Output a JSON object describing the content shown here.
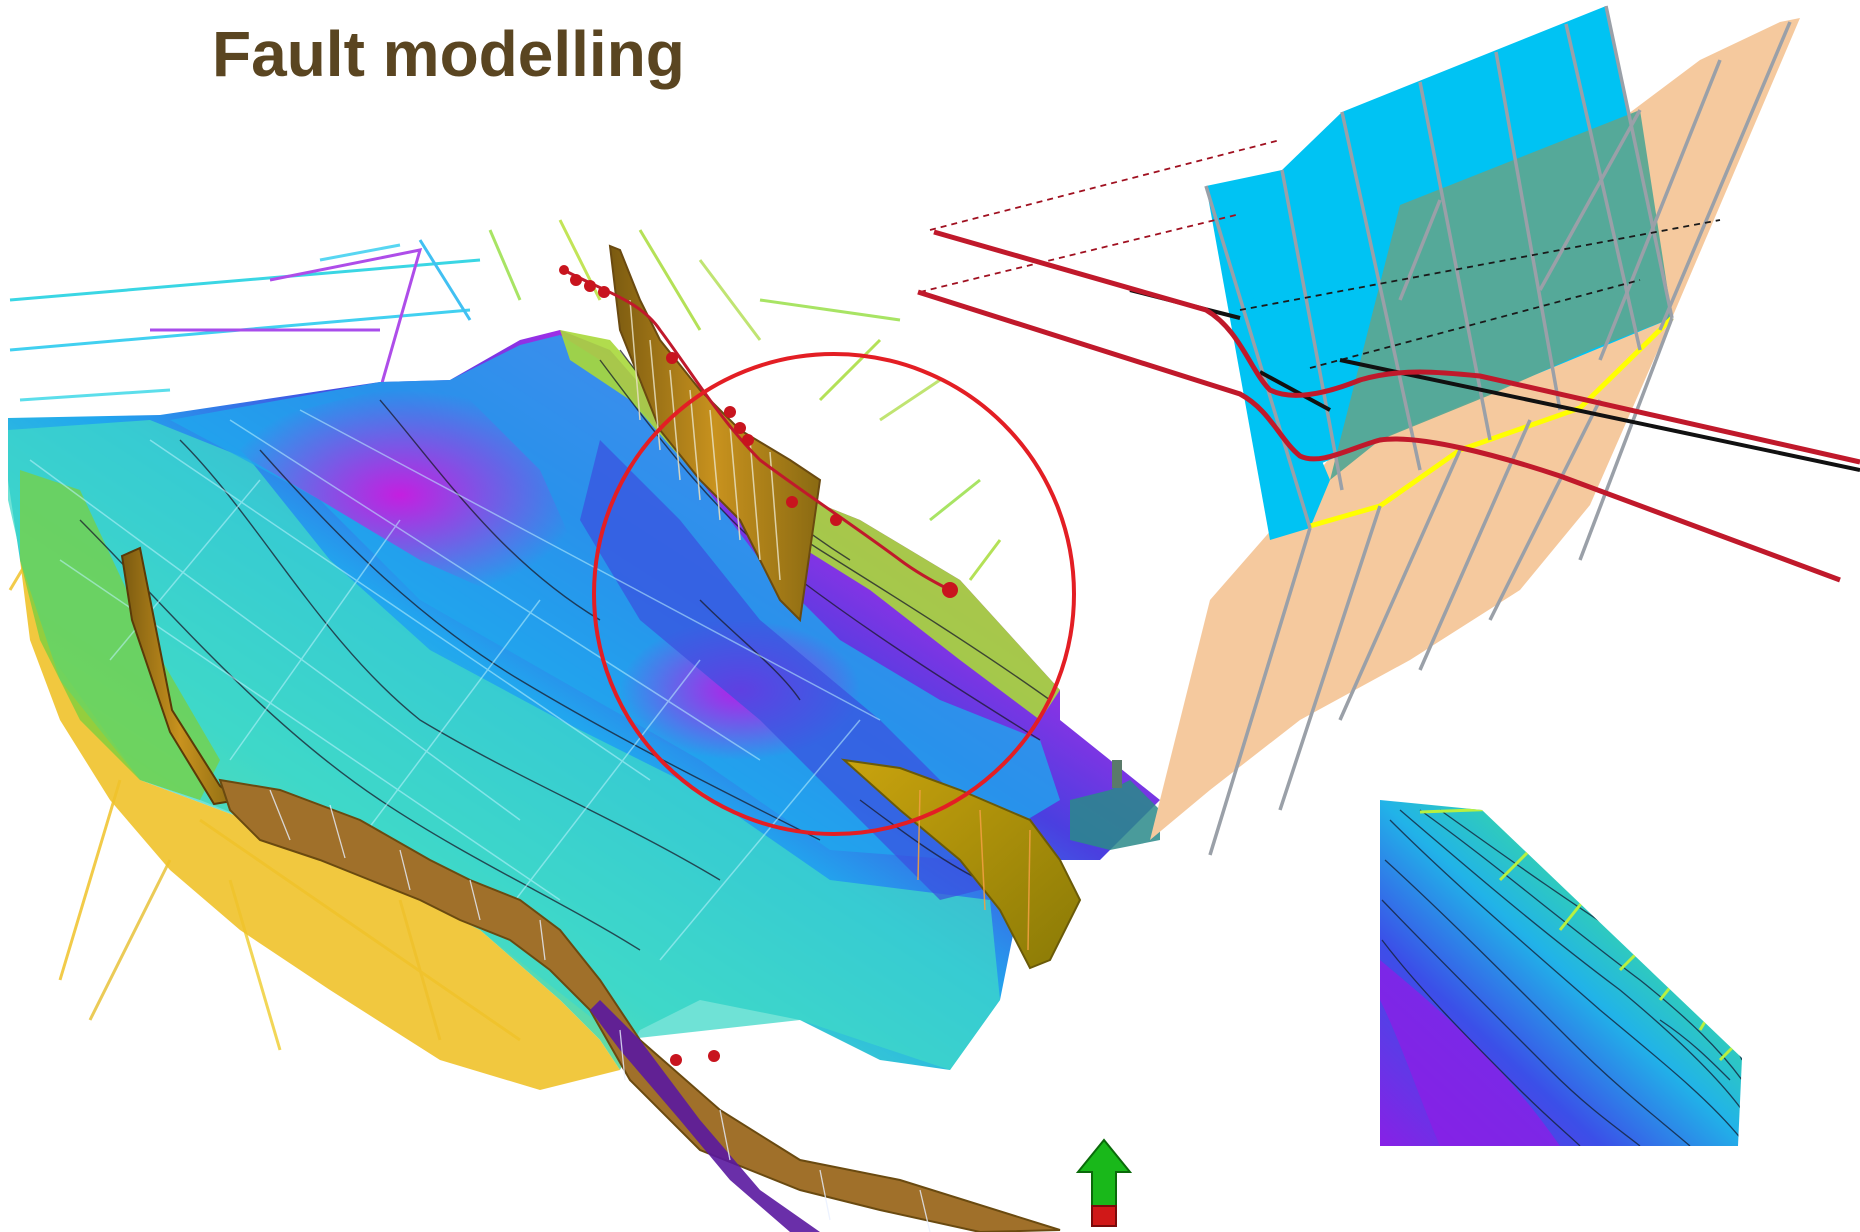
{
  "slide": {
    "title": "Fault modelling"
  },
  "colors": {
    "title": "#5a4521",
    "highlight_circle": "#e31e24",
    "fault_plane_blue": "#00c3f3",
    "fault_plane_teal": "#5aa894",
    "fault_plane_peach": "#f5c99e",
    "horizon_line": "#c0192b",
    "fault_pillar": "#9aa0a8",
    "fault_wall": "#b8860b",
    "arrow_green": "#19b81a",
    "arrow_red": "#d01818",
    "contact_yellow": "#ffff00"
  },
  "icons": {
    "north": "north-arrow-icon"
  }
}
